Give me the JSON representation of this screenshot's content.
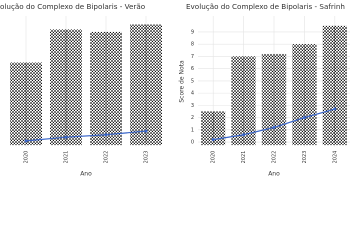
{
  "chart_data": [
    {
      "type": "jitter",
      "title": "olução do Complexo de Bipolaris - Verão",
      "x_label": "Ano",
      "categories": [
        "2020",
        "2021",
        "2022",
        "2023"
      ],
      "series": [
        {
          "color": "#111111",
          "values": [
            6.5,
            9.2,
            9.0,
            9.6
          ]
        },
        {
          "color": "#3a66c9",
          "values": [
            0.1,
            0.4,
            0.6,
            0.9
          ]
        }
      ],
      "ylim": [
        -0.4,
        10.3
      ],
      "grid": true
    },
    {
      "type": "jitter",
      "title": "Evolução do Complexo de Bipolaris - Safrinh",
      "x_label": "Ano",
      "y_label": "Score de Nota",
      "categories": [
        "2020",
        "2021",
        "2022",
        "2023",
        "2024"
      ],
      "series": [
        {
          "color": "#111111",
          "values": [
            2.5,
            7.0,
            7.2,
            8.0,
            9.5
          ]
        },
        {
          "color": "#3a66c9",
          "values": [
            0.2,
            0.6,
            1.2,
            2.0,
            2.7
          ]
        }
      ],
      "ylim": [
        -0.4,
        10.3
      ],
      "yticks": [
        0,
        1,
        2,
        3,
        4,
        5,
        6,
        7,
        8,
        9
      ],
      "grid": true
    }
  ]
}
